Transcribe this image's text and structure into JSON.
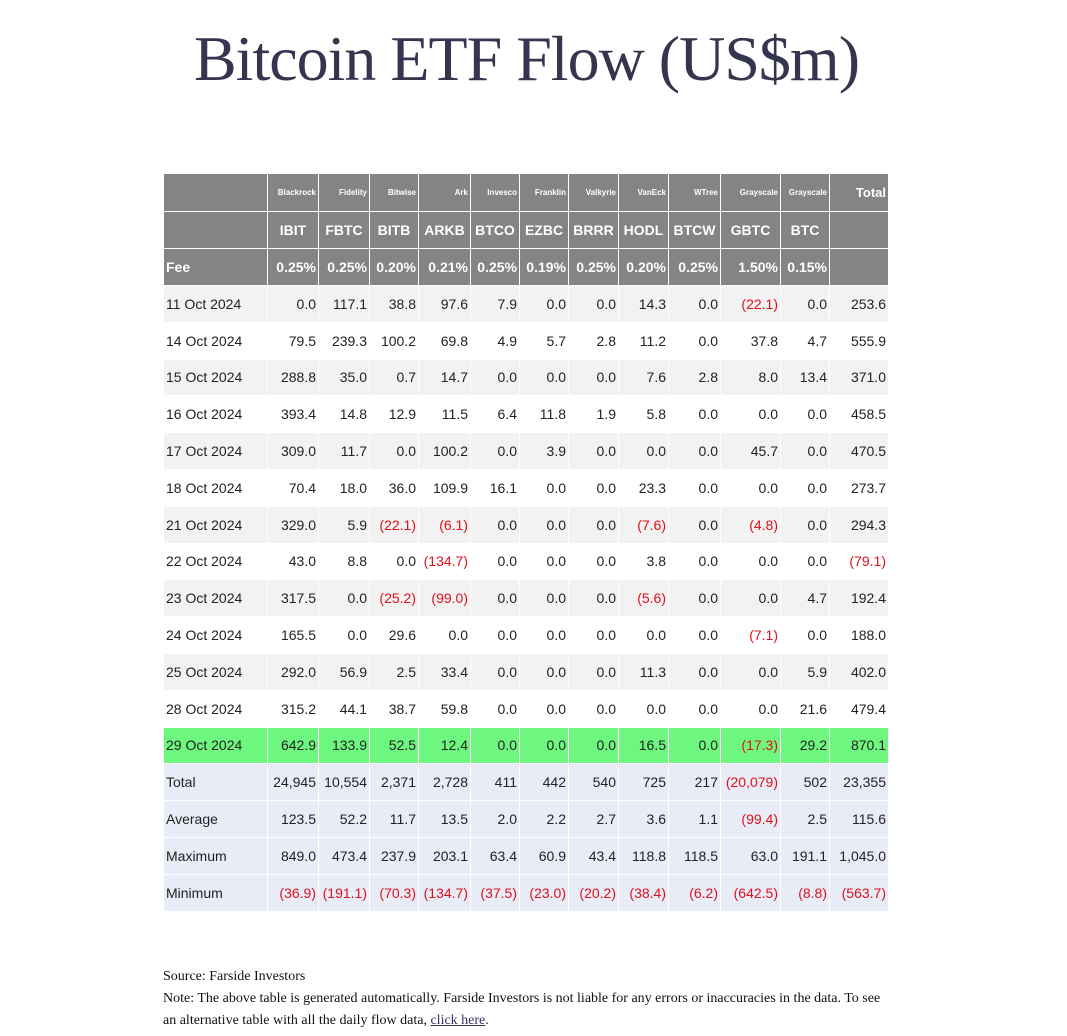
{
  "header": {
    "title": "Bitcoin ETF Flow (US$m)"
  },
  "table": {
    "issuers": [
      "Blackrock",
      "Fidelity",
      "Bitwise",
      "Ark",
      "Invesco",
      "Franklin",
      "Valkyrie",
      "VanEck",
      "WTree",
      "Grayscale",
      "Grayscale",
      "Total"
    ],
    "tickers": [
      "IBIT",
      "FBTC",
      "BITB",
      "ARKB",
      "BTCO",
      "EZBC",
      "BRRR",
      "HODL",
      "BTCW",
      "GBTC",
      "BTC"
    ],
    "fee_label": "Fee",
    "fees": [
      "0.25%",
      "0.25%",
      "0.20%",
      "0.21%",
      "0.25%",
      "0.19%",
      "0.25%",
      "0.20%",
      "0.25%",
      "1.50%",
      "0.15%"
    ],
    "rows": [
      {
        "date": "11 Oct 2024",
        "values": [
          "0.0",
          "117.1",
          "38.8",
          "97.6",
          "7.9",
          "0.0",
          "0.0",
          "14.3",
          "0.0",
          "(22.1)",
          "0.0",
          "253.6"
        ]
      },
      {
        "date": "14 Oct 2024",
        "values": [
          "79.5",
          "239.3",
          "100.2",
          "69.8",
          "4.9",
          "5.7",
          "2.8",
          "11.2",
          "0.0",
          "37.8",
          "4.7",
          "555.9"
        ]
      },
      {
        "date": "15 Oct 2024",
        "values": [
          "288.8",
          "35.0",
          "0.7",
          "14.7",
          "0.0",
          "0.0",
          "0.0",
          "7.6",
          "2.8",
          "8.0",
          "13.4",
          "371.0"
        ]
      },
      {
        "date": "16 Oct 2024",
        "values": [
          "393.4",
          "14.8",
          "12.9",
          "11.5",
          "6.4",
          "11.8",
          "1.9",
          "5.8",
          "0.0",
          "0.0",
          "0.0",
          "458.5"
        ]
      },
      {
        "date": "17 Oct 2024",
        "values": [
          "309.0",
          "11.7",
          "0.0",
          "100.2",
          "0.0",
          "3.9",
          "0.0",
          "0.0",
          "0.0",
          "45.7",
          "0.0",
          "470.5"
        ]
      },
      {
        "date": "18 Oct 2024",
        "values": [
          "70.4",
          "18.0",
          "36.0",
          "109.9",
          "16.1",
          "0.0",
          "0.0",
          "23.3",
          "0.0",
          "0.0",
          "0.0",
          "273.7"
        ]
      },
      {
        "date": "21 Oct 2024",
        "values": [
          "329.0",
          "5.9",
          "(22.1)",
          "(6.1)",
          "0.0",
          "0.0",
          "0.0",
          "(7.6)",
          "0.0",
          "(4.8)",
          "0.0",
          "294.3"
        ]
      },
      {
        "date": "22 Oct 2024",
        "values": [
          "43.0",
          "8.8",
          "0.0",
          "(134.7)",
          "0.0",
          "0.0",
          "0.0",
          "3.8",
          "0.0",
          "0.0",
          "0.0",
          "(79.1)"
        ]
      },
      {
        "date": "23 Oct 2024",
        "values": [
          "317.5",
          "0.0",
          "(25.2)",
          "(99.0)",
          "0.0",
          "0.0",
          "0.0",
          "(5.6)",
          "0.0",
          "0.0",
          "4.7",
          "192.4"
        ]
      },
      {
        "date": "24 Oct 2024",
        "values": [
          "165.5",
          "0.0",
          "29.6",
          "0.0",
          "0.0",
          "0.0",
          "0.0",
          "0.0",
          "0.0",
          "(7.1)",
          "0.0",
          "188.0"
        ]
      },
      {
        "date": "25 Oct 2024",
        "values": [
          "292.0",
          "56.9",
          "2.5",
          "33.4",
          "0.0",
          "0.0",
          "0.0",
          "11.3",
          "0.0",
          "0.0",
          "5.9",
          "402.0"
        ]
      },
      {
        "date": "28 Oct 2024",
        "values": [
          "315.2",
          "44.1",
          "38.7",
          "59.8",
          "0.0",
          "0.0",
          "0.0",
          "0.0",
          "0.0",
          "0.0",
          "21.6",
          "479.4"
        ]
      },
      {
        "date": "29 Oct 2024",
        "highlight": true,
        "values": [
          "642.9",
          "133.9",
          "52.5",
          "12.4",
          "0.0",
          "0.0",
          "0.0",
          "16.5",
          "0.0",
          "(17.3)",
          "29.2",
          "870.1"
        ]
      }
    ],
    "summary": [
      {
        "label": "Total",
        "values": [
          "24,945",
          "10,554",
          "2,371",
          "2,728",
          "411",
          "442",
          "540",
          "725",
          "217",
          "(20,079)",
          "502",
          "23,355"
        ]
      },
      {
        "label": "Average",
        "values": [
          "123.5",
          "52.2",
          "11.7",
          "13.5",
          "2.0",
          "2.2",
          "2.7",
          "3.6",
          "1.1",
          "(99.4)",
          "2.5",
          "115.6"
        ]
      },
      {
        "label": "Maximum",
        "values": [
          "849.0",
          "473.4",
          "237.9",
          "203.1",
          "63.4",
          "60.9",
          "43.4",
          "118.8",
          "118.5",
          "63.0",
          "191.1",
          "1,045.0"
        ]
      },
      {
        "label": "Minimum",
        "values": [
          "(36.9)",
          "(191.1)",
          "(70.3)",
          "(134.7)",
          "(37.5)",
          "(23.0)",
          "(20.2)",
          "(38.4)",
          "(6.2)",
          "(642.5)",
          "(8.8)",
          "(563.7)"
        ]
      }
    ]
  },
  "footer": {
    "source": "Source: Farside Investors",
    "note": "Note: The above table is generated automatically. Farside Investors is not liable for any errors or inaccuracies in the data. To see an alternative table with all the daily flow data,",
    "link": "click here",
    "note_end": "."
  }
}
